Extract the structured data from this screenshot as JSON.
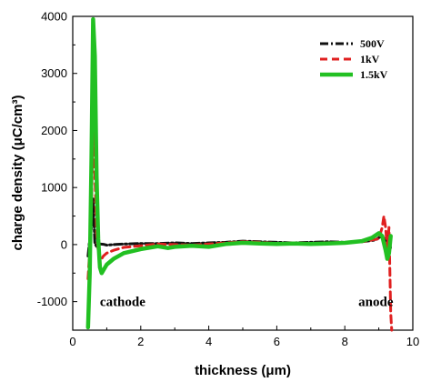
{
  "chart_data": {
    "type": "line",
    "xlabel": "thickness (μm)",
    "ylabel": "charge density (μC/cm³)",
    "xlim": [
      0,
      10
    ],
    "ylim": [
      -1500,
      4000
    ],
    "x_ticks": [
      0,
      2,
      4,
      6,
      8,
      10
    ],
    "y_ticks": [
      -1000,
      0,
      1000,
      2000,
      3000,
      4000
    ],
    "grid": false,
    "legend_position": "top-right",
    "annotations": [
      {
        "text": "cathode",
        "x": 0.8,
        "y": -1000
      },
      {
        "text": "anode",
        "x": 8.4,
        "y": -1000
      }
    ],
    "series": [
      {
        "name": "500V",
        "color": "#111111",
        "style": "dash-dot",
        "points": [
          [
            0.45,
            -200
          ],
          [
            0.5,
            100
          ],
          [
            0.55,
            300
          ],
          [
            0.6,
            800
          ],
          [
            0.65,
            20
          ],
          [
            0.7,
            -30
          ],
          [
            0.8,
            10
          ],
          [
            0.9,
            5
          ],
          [
            1.0,
            -10
          ],
          [
            1.2,
            0
          ],
          [
            1.5,
            10
          ],
          [
            2.0,
            20
          ],
          [
            2.5,
            20
          ],
          [
            3.0,
            30
          ],
          [
            3.5,
            20
          ],
          [
            4.0,
            30
          ],
          [
            4.5,
            40
          ],
          [
            5.0,
            60
          ],
          [
            5.5,
            50
          ],
          [
            6.0,
            40
          ],
          [
            6.5,
            30
          ],
          [
            7.0,
            40
          ],
          [
            7.5,
            50
          ],
          [
            8.0,
            40
          ],
          [
            8.5,
            50
          ],
          [
            8.9,
            80
          ],
          [
            9.0,
            120
          ],
          [
            9.1,
            160
          ],
          [
            9.2,
            80
          ],
          [
            9.25,
            0
          ],
          [
            9.3,
            200
          ],
          [
            9.35,
            -100
          ]
        ]
      },
      {
        "name": "1kV",
        "color": "#e02020",
        "style": "dash",
        "points": [
          [
            0.45,
            -600
          ],
          [
            0.5,
            -100
          ],
          [
            0.55,
            600
          ],
          [
            0.6,
            2100
          ],
          [
            0.65,
            1300
          ],
          [
            0.7,
            200
          ],
          [
            0.75,
            -100
          ],
          [
            0.8,
            -300
          ],
          [
            0.9,
            -200
          ],
          [
            1.0,
            -150
          ],
          [
            1.2,
            -100
          ],
          [
            1.5,
            -50
          ],
          [
            2.0,
            -20
          ],
          [
            2.5,
            10
          ],
          [
            3.0,
            0
          ],
          [
            3.5,
            -10
          ],
          [
            4.0,
            10
          ],
          [
            4.5,
            30
          ],
          [
            5.0,
            50
          ],
          [
            5.5,
            40
          ],
          [
            6.0,
            20
          ],
          [
            6.5,
            30
          ],
          [
            7.0,
            20
          ],
          [
            7.5,
            30
          ],
          [
            8.0,
            40
          ],
          [
            8.5,
            50
          ],
          [
            9.0,
            100
          ],
          [
            9.1,
            300
          ],
          [
            9.15,
            500
          ],
          [
            9.2,
            300
          ],
          [
            9.25,
            -100
          ],
          [
            9.3,
            300
          ],
          [
            9.35,
            -1200
          ],
          [
            9.38,
            -1500
          ]
        ]
      },
      {
        "name": "1.5kV",
        "color": "#22c022",
        "style": "solid",
        "points": [
          [
            0.45,
            -1450
          ],
          [
            0.5,
            -500
          ],
          [
            0.55,
            1500
          ],
          [
            0.6,
            3950
          ],
          [
            0.65,
            3300
          ],
          [
            0.7,
            1200
          ],
          [
            0.75,
            100
          ],
          [
            0.8,
            -400
          ],
          [
            0.85,
            -500
          ],
          [
            0.9,
            -450
          ],
          [
            1.0,
            -350
          ],
          [
            1.2,
            -250
          ],
          [
            1.5,
            -150
          ],
          [
            2.0,
            -80
          ],
          [
            2.5,
            -30
          ],
          [
            2.8,
            -60
          ],
          [
            3.0,
            -40
          ],
          [
            3.5,
            -20
          ],
          [
            4.0,
            -40
          ],
          [
            4.5,
            10
          ],
          [
            5.0,
            30
          ],
          [
            5.5,
            20
          ],
          [
            6.0,
            10
          ],
          [
            6.5,
            20
          ],
          [
            7.0,
            10
          ],
          [
            7.5,
            20
          ],
          [
            8.0,
            30
          ],
          [
            8.5,
            60
          ],
          [
            8.8,
            120
          ],
          [
            9.0,
            200
          ],
          [
            9.1,
            150
          ],
          [
            9.2,
            -100
          ],
          [
            9.25,
            -250
          ],
          [
            9.3,
            -150
          ],
          [
            9.35,
            150
          ]
        ]
      }
    ]
  }
}
